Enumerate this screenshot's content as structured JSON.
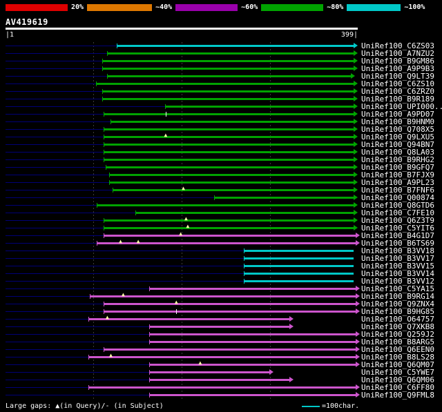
{
  "colors": {
    "background": "#000000",
    "text": "#ffffff",
    "hit_green": "#00a300",
    "hit_cyan": "#00c8c8",
    "hit_magenta": "#cc55cc",
    "backbone_navy": "#000077",
    "query_bar": "#ffffff",
    "gridline": "#3c3c3c",
    "gap_marker": "#ffffaa"
  },
  "scale_bar": {
    "segments": [
      {
        "label": "20%",
        "color": "#dd0000"
      },
      {
        "label": "~40%",
        "color": "#dd7700"
      },
      {
        "label": "~60%",
        "color": "#9900aa"
      },
      {
        "label": "~80%",
        "color": "#00a300"
      },
      {
        "label": "~100%",
        "color": "#00c8c8"
      }
    ]
  },
  "query": {
    "name": "AV419619",
    "length": 399,
    "start_label": "|1",
    "end_label": "399|"
  },
  "plot": {
    "gridlines": [
      100,
      200,
      300
    ]
  },
  "hits": [
    {
      "label": "UniRef100_C6ZS03",
      "color": "cyan",
      "start": 127,
      "end": 394,
      "arrow": true
    },
    {
      "label": "UniRef100_A7NZU2",
      "color": "green",
      "start": 116,
      "end": 394,
      "arrow": true
    },
    {
      "label": "UniRef100_B9GM86",
      "color": "green",
      "start": 110,
      "end": 394,
      "arrow": true
    },
    {
      "label": "UniRef100_A9P9B3",
      "color": "green",
      "start": 110,
      "end": 394,
      "arrow": true
    },
    {
      "label": "UniRef100_Q9LT39",
      "color": "green",
      "start": 116,
      "end": 391,
      "arrow": true
    },
    {
      "label": "UniRef100_C6ZS10",
      "color": "green",
      "start": 103,
      "end": 394,
      "arrow": true
    },
    {
      "label": "UniRef100_C6ZRZ0",
      "color": "green",
      "start": 110,
      "end": 394,
      "arrow": true
    },
    {
      "label": "UniRef100_B9R189",
      "color": "green",
      "start": 110,
      "end": 394,
      "arrow": true
    },
    {
      "label": "UniRef100_UPI000...",
      "color": "green",
      "start": 181,
      "end": 394,
      "arrow": true
    },
    {
      "label": "UniRef100_A9PD07",
      "color": "green",
      "start": 112,
      "end": 394,
      "arrow": true,
      "ticks": [
        182
      ]
    },
    {
      "label": "UniRef100_B9HNM0",
      "color": "green",
      "start": 120,
      "end": 394,
      "arrow": true
    },
    {
      "label": "UniRef100_Q708X5",
      "color": "green",
      "start": 112,
      "end": 394,
      "arrow": true
    },
    {
      "label": "UniRef100_Q9LXU5",
      "color": "green",
      "start": 112,
      "end": 394,
      "arrow": true,
      "gaps": [
        182
      ]
    },
    {
      "label": "UniRef100_Q94BN7",
      "color": "green",
      "start": 112,
      "end": 394,
      "arrow": true
    },
    {
      "label": "UniRef100_Q8LA03",
      "color": "green",
      "start": 112,
      "end": 394,
      "arrow": true
    },
    {
      "label": "UniRef100_B9RHG2",
      "color": "green",
      "start": 112,
      "end": 394,
      "arrow": true
    },
    {
      "label": "UniRef100_B9GFQ7",
      "color": "green",
      "start": 114,
      "end": 394,
      "arrow": true
    },
    {
      "label": "UniRef100_B7FJX9",
      "color": "green",
      "start": 118,
      "end": 394,
      "arrow": true
    },
    {
      "label": "UniRef100_A9PL23",
      "color": "green",
      "start": 118,
      "end": 394,
      "arrow": true
    },
    {
      "label": "UniRef100_B7FNF6",
      "color": "green",
      "start": 122,
      "end": 394,
      "arrow": true,
      "gaps": [
        202
      ]
    },
    {
      "label": "UniRef100_Q00874",
      "color": "green",
      "start": 237,
      "end": 394,
      "arrow": true
    },
    {
      "label": "UniRef100_Q8GTD6",
      "color": "green",
      "start": 104,
      "end": 394,
      "arrow": true
    },
    {
      "label": "UniRef100_C7FE10",
      "color": "green",
      "start": 148,
      "end": 394,
      "arrow": true
    },
    {
      "label": "UniRef100_Q6Z3T9",
      "color": "green",
      "start": 112,
      "end": 394,
      "arrow": true,
      "gaps": [
        205
      ]
    },
    {
      "label": "UniRef100_C5YIT6",
      "color": "green",
      "start": 112,
      "end": 394,
      "arrow": true,
      "gaps": [
        207
      ]
    },
    {
      "label": "UniRef100_B4G1D7",
      "color": "magenta",
      "start": 112,
      "end": 397,
      "arrow": true,
      "gaps": [
        199
      ]
    },
    {
      "label": "UniRef100_B6TS69",
      "color": "magenta",
      "start": 104,
      "end": 397,
      "arrow": true,
      "gaps": [
        131,
        151
      ]
    },
    {
      "label": "UniRef100_B3VV18",
      "color": "cyan",
      "start": 270,
      "end": 394,
      "arrow": false
    },
    {
      "label": "UniRef100_B3VV17",
      "color": "cyan",
      "start": 270,
      "end": 394,
      "arrow": false
    },
    {
      "label": "UniRef100_B3VV15",
      "color": "cyan",
      "start": 270,
      "end": 394,
      "arrow": false
    },
    {
      "label": "UniRef100_B3VV14",
      "color": "cyan",
      "start": 270,
      "end": 394,
      "arrow": false
    },
    {
      "label": "UniRef100_B3VV12",
      "color": "cyan",
      "start": 270,
      "end": 394,
      "arrow": false
    },
    {
      "label": "UniRef100_C5YA15",
      "color": "magenta",
      "start": 163,
      "end": 397,
      "arrow": true
    },
    {
      "label": "UniRef100_B9RG14",
      "color": "magenta",
      "start": 96,
      "end": 397,
      "arrow": true,
      "gaps": [
        134
      ]
    },
    {
      "label": "UniRef100_Q9ZNX4",
      "color": "magenta",
      "start": 112,
      "end": 397,
      "arrow": true,
      "gaps": [
        194
      ]
    },
    {
      "label": "UniRef100_B9HG85",
      "color": "magenta",
      "start": 112,
      "end": 397,
      "arrow": true,
      "ticks": [
        194
      ]
    },
    {
      "label": "UniRef100_O64757",
      "color": "magenta",
      "start": 95,
      "end": 322,
      "arrow": true,
      "gaps": [
        116
      ]
    },
    {
      "label": "UniRef100_Q7XKB8",
      "color": "magenta",
      "start": 163,
      "end": 322,
      "arrow": true
    },
    {
      "label": "UniRef100_Q259J2",
      "color": "magenta",
      "start": 163,
      "end": 397,
      "arrow": true
    },
    {
      "label": "UniRef100_B8ARG5",
      "color": "magenta",
      "start": 163,
      "end": 397,
      "arrow": true
    },
    {
      "label": "UniRef100_Q6EEN0",
      "color": "magenta",
      "start": 112,
      "end": 397,
      "arrow": true
    },
    {
      "label": "UniRef100_B8LS28",
      "color": "magenta",
      "start": 95,
      "end": 397,
      "arrow": true,
      "gaps": [
        120
      ]
    },
    {
      "label": "UniRef100_Q6QM07",
      "color": "magenta",
      "start": 163,
      "end": 397,
      "arrow": true,
      "gaps": [
        221
      ]
    },
    {
      "label": "UniRef100_C5YWE7",
      "color": "magenta",
      "start": 163,
      "end": 299,
      "arrow": true
    },
    {
      "label": "UniRef100_Q6QM06",
      "color": "magenta",
      "start": 163,
      "end": 322,
      "arrow": true
    },
    {
      "label": "UniRef100_C6FF80",
      "color": "magenta",
      "start": 95,
      "end": 397,
      "arrow": true
    },
    {
      "label": "UniRef100_Q9FML8",
      "color": "magenta",
      "start": 163,
      "end": 397,
      "arrow": true
    }
  ],
  "footer": {
    "legend_text": "Large gaps: ▲(in Query)/- (in Subject)",
    "scale_note": "=100char."
  }
}
